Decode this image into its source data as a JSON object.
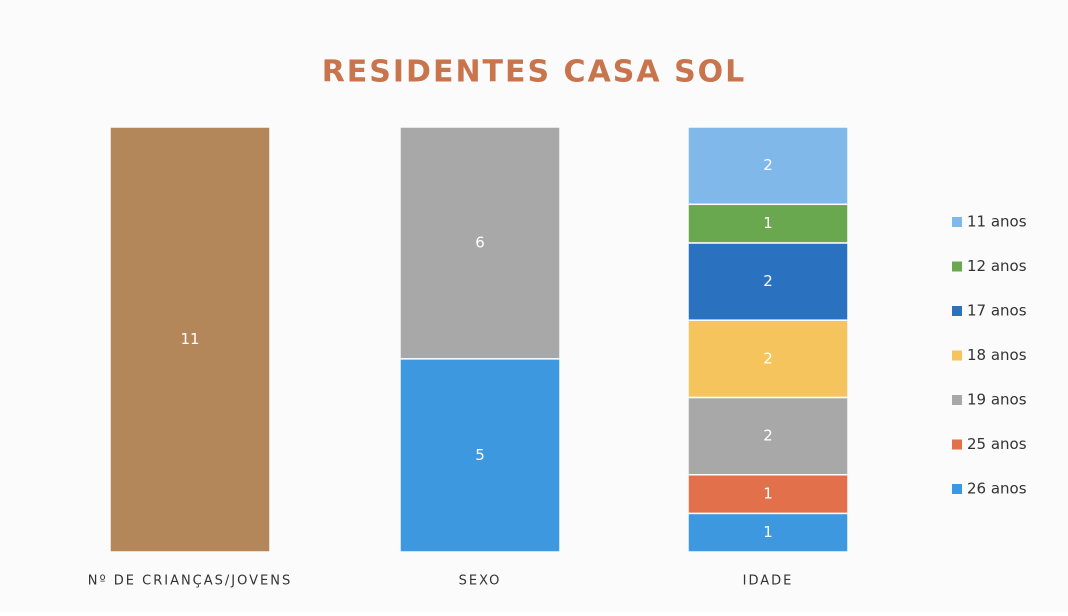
{
  "chart_data": {
    "type": "bar",
    "stacked": true,
    "title": "RESIDENTES CASA SOL",
    "categories": [
      "Nº DE CRIANÇAS/JOVENS",
      "SEXO",
      "IDADE"
    ],
    "series": [
      {
        "color": "#b3875a",
        "values": [
          11,
          null,
          null
        ]
      },
      {
        "color": "#a8a8a8",
        "values": [
          null,
          6,
          null
        ]
      },
      {
        "color": "#3d98e0",
        "values": [
          null,
          5,
          null
        ]
      },
      {
        "name": "11 anos",
        "color": "#80b8ea",
        "values": [
          null,
          null,
          2
        ]
      },
      {
        "name": "12 anos",
        "color": "#6aa84f",
        "values": [
          null,
          null,
          1
        ]
      },
      {
        "name": "17 anos",
        "color": "#2a72c0",
        "values": [
          null,
          null,
          2
        ]
      },
      {
        "name": "18 anos",
        "color": "#f5c45c",
        "values": [
          null,
          null,
          2
        ]
      },
      {
        "name": "19 anos",
        "color": "#a8a8a8",
        "values": [
          null,
          null,
          2
        ]
      },
      {
        "name": "25 anos",
        "color": "#e2704a",
        "values": [
          null,
          null,
          1
        ]
      },
      {
        "name": "26 anos",
        "color": "#3d98e0",
        "values": [
          null,
          null,
          1
        ]
      }
    ],
    "legend": "right"
  }
}
